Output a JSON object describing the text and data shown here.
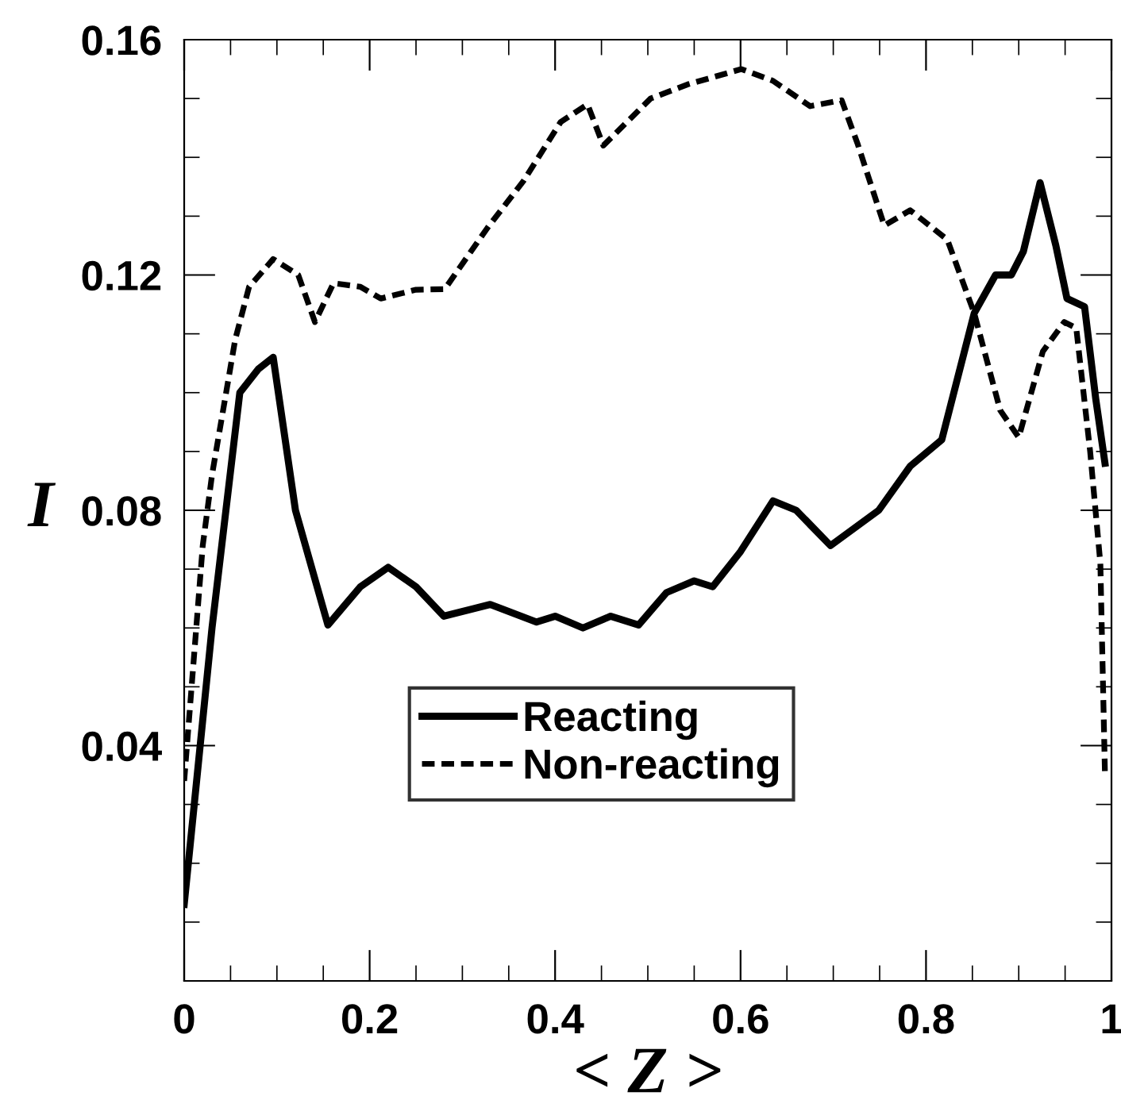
{
  "chart_data": {
    "type": "line",
    "xlabel": "< Z >",
    "ylabel": "I",
    "xlim": [
      0,
      1
    ],
    "ylim": [
      0,
      0.16
    ],
    "xticks": [
      0,
      0.2,
      0.4,
      0.6,
      0.8,
      1
    ],
    "yticks": [
      0.04,
      0.08,
      0.12,
      0.16
    ],
    "legend": "bottom",
    "grid": false,
    "series": [
      {
        "name": "Reacting",
        "color": "#000000",
        "line_style": "solid",
        "x": [
          0.0,
          0.03,
          0.06,
          0.08,
          0.096,
          0.12,
          0.155,
          0.19,
          0.22,
          0.25,
          0.28,
          0.33,
          0.38,
          0.4,
          0.43,
          0.46,
          0.49,
          0.52,
          0.55,
          0.57,
          0.6,
          0.635,
          0.66,
          0.697,
          0.749,
          0.783,
          0.817,
          0.852,
          0.875,
          0.892,
          0.905,
          0.923,
          0.94,
          0.952,
          0.971,
          0.983,
          0.993
        ],
        "values": [
          0.013,
          0.06,
          0.1,
          0.104,
          0.106,
          0.08,
          0.0605,
          0.067,
          0.0703,
          0.067,
          0.062,
          0.064,
          0.061,
          0.062,
          0.06,
          0.062,
          0.0605,
          0.066,
          0.068,
          0.067,
          0.073,
          0.0816,
          0.08,
          0.074,
          0.08,
          0.0875,
          0.092,
          0.1135,
          0.12,
          0.12,
          0.124,
          0.1357,
          0.125,
          0.116,
          0.1146,
          0.099,
          0.088
        ]
      },
      {
        "name": "Non-reacting",
        "color": "#000000",
        "line_style": "dashed",
        "x": [
          0.0,
          0.02,
          0.03,
          0.055,
          0.07,
          0.096,
          0.123,
          0.141,
          0.161,
          0.19,
          0.212,
          0.25,
          0.281,
          0.327,
          0.366,
          0.406,
          0.435,
          0.452,
          0.503,
          0.543,
          0.601,
          0.635,
          0.675,
          0.709,
          0.726,
          0.755,
          0.783,
          0.823,
          0.852,
          0.88,
          0.9,
          0.926,
          0.949,
          0.962,
          0.977,
          0.988,
          0.993
        ],
        "values": [
          0.034,
          0.074,
          0.086,
          0.109,
          0.118,
          0.1227,
          0.12,
          0.112,
          0.1186,
          0.118,
          0.116,
          0.1175,
          0.1176,
          0.128,
          0.136,
          0.146,
          0.149,
          0.142,
          0.15,
          0.1524,
          0.155,
          0.153,
          0.1487,
          0.1497,
          0.1424,
          0.1284,
          0.131,
          0.126,
          0.1135,
          0.097,
          0.0924,
          0.107,
          0.112,
          0.111,
          0.09,
          0.071,
          0.035
        ]
      }
    ]
  }
}
